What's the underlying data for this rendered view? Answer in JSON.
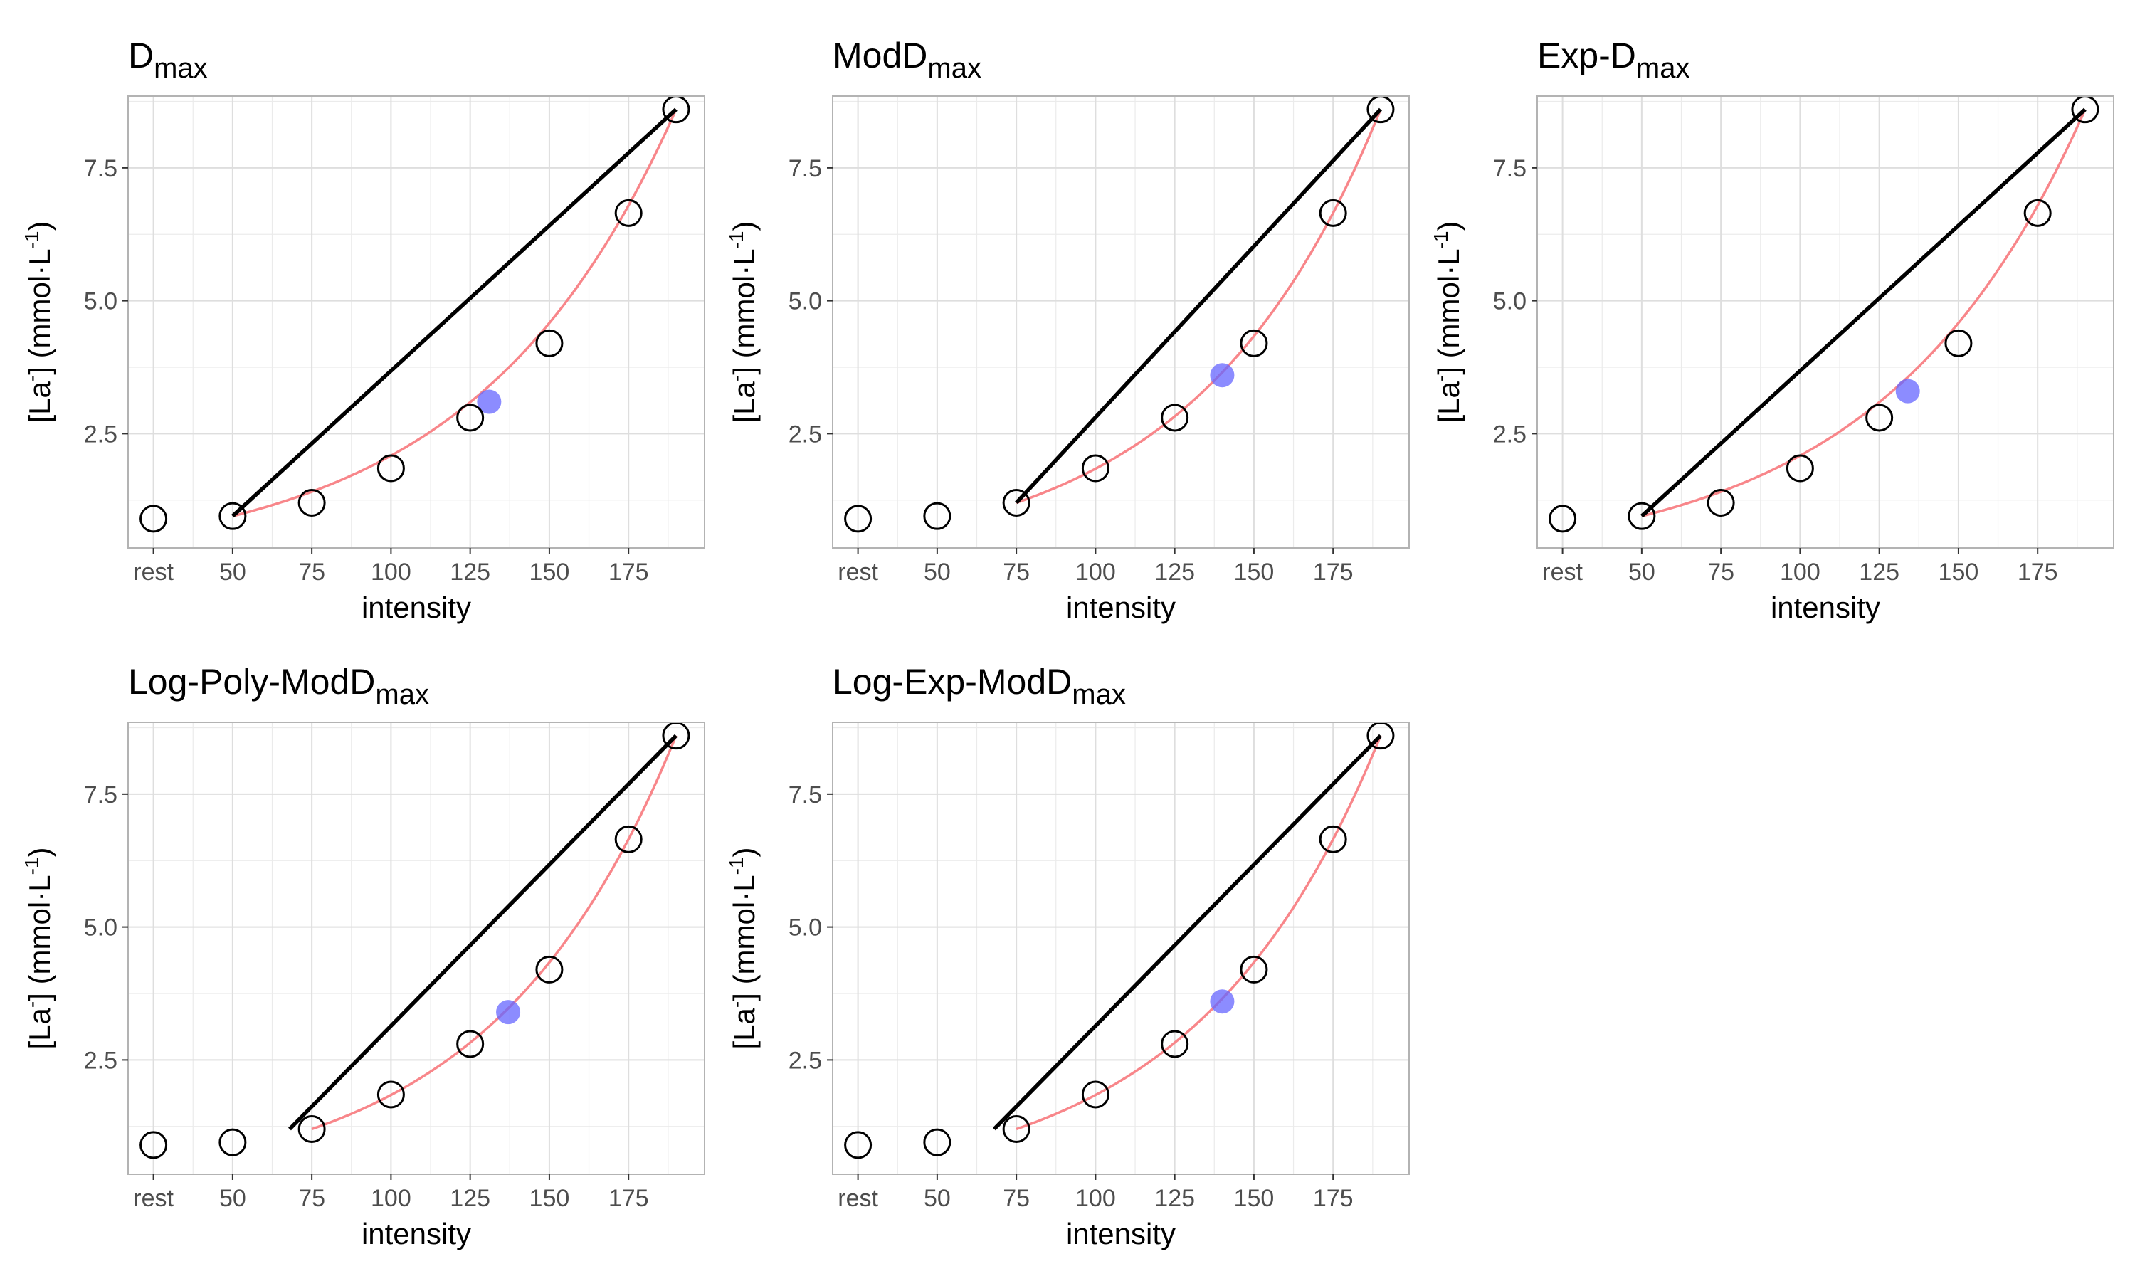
{
  "chart_data": [
    {
      "type": "scatter",
      "title_main": "D",
      "title_sub": "max",
      "xlabel": "intensity",
      "ylabel": {
        "prefix": "[La",
        "sup1": "-",
        "middle": "] (mmol·L",
        "sup2": "-1",
        "suffix": ")"
      },
      "x_tick_labels": [
        "rest",
        "50",
        "75",
        "100",
        "125",
        "150",
        "175"
      ],
      "x_tick_values": [
        25,
        50,
        75,
        100,
        125,
        150,
        175
      ],
      "y_tick_labels": [
        "2.5",
        "5.0",
        "7.5"
      ],
      "y_tick_values": [
        2.5,
        5.0,
        7.5
      ],
      "xlim": [
        17,
        199
      ],
      "ylim": [
        0.35,
        8.85
      ],
      "grid": true,
      "points": {
        "x": [
          25,
          50,
          75,
          100,
          125,
          150,
          175,
          190
        ],
        "y": [
          0.9,
          0.95,
          1.2,
          1.85,
          2.8,
          4.2,
          6.65,
          8.6
        ]
      },
      "curve": {
        "start": [
          50,
          0.95
        ],
        "end": [
          190,
          8.6
        ]
      },
      "line": {
        "start": [
          50,
          0.95
        ],
        "end": [
          190,
          8.6
        ]
      },
      "threshold": {
        "x": 131,
        "y": 3.1
      },
      "colors": {
        "curve": "#f8868a",
        "line": "#000000",
        "threshold": "#6666ff",
        "grid": "#ebebeb",
        "panel_border": "#b3b3b3"
      }
    },
    {
      "type": "scatter",
      "title_main": "ModD",
      "title_sub": "max",
      "xlabel": "intensity",
      "ylabel": {
        "prefix": "[La",
        "sup1": "-",
        "middle": "] (mmol·L",
        "sup2": "-1",
        "suffix": ")"
      },
      "x_tick_labels": [
        "rest",
        "50",
        "75",
        "100",
        "125",
        "150",
        "175"
      ],
      "x_tick_values": [
        25,
        50,
        75,
        100,
        125,
        150,
        175
      ],
      "y_tick_labels": [
        "2.5",
        "5.0",
        "7.5"
      ],
      "y_tick_values": [
        2.5,
        5.0,
        7.5
      ],
      "xlim": [
        17,
        199
      ],
      "ylim": [
        0.35,
        8.85
      ],
      "grid": true,
      "points": {
        "x": [
          25,
          50,
          75,
          100,
          125,
          150,
          175,
          190
        ],
        "y": [
          0.9,
          0.95,
          1.2,
          1.85,
          2.8,
          4.2,
          6.65,
          8.6
        ]
      },
      "curve": {
        "start": [
          75,
          1.2
        ],
        "end": [
          190,
          8.6
        ]
      },
      "line": {
        "start": [
          75,
          1.2
        ],
        "end": [
          190,
          8.6
        ]
      },
      "threshold": {
        "x": 140,
        "y": 3.6
      },
      "colors": {
        "curve": "#f8868a",
        "line": "#000000",
        "threshold": "#6666ff",
        "grid": "#ebebeb",
        "panel_border": "#b3b3b3"
      }
    },
    {
      "type": "scatter",
      "title_main": "Exp-D",
      "title_sub": "max",
      "xlabel": "intensity",
      "ylabel": {
        "prefix": "[La",
        "sup1": "-",
        "middle": "] (mmol·L",
        "sup2": "-1",
        "suffix": ")"
      },
      "x_tick_labels": [
        "rest",
        "50",
        "75",
        "100",
        "125",
        "150",
        "175"
      ],
      "x_tick_values": [
        25,
        50,
        75,
        100,
        125,
        150,
        175
      ],
      "y_tick_labels": [
        "2.5",
        "5.0",
        "7.5"
      ],
      "y_tick_values": [
        2.5,
        5.0,
        7.5
      ],
      "xlim": [
        17,
        199
      ],
      "ylim": [
        0.35,
        8.85
      ],
      "grid": true,
      "points": {
        "x": [
          25,
          50,
          75,
          100,
          125,
          150,
          175,
          190
        ],
        "y": [
          0.9,
          0.95,
          1.2,
          1.85,
          2.8,
          4.2,
          6.65,
          8.6
        ]
      },
      "curve": {
        "start": [
          50,
          0.95
        ],
        "end": [
          190,
          8.6
        ]
      },
      "line": {
        "start": [
          50,
          0.95
        ],
        "end": [
          190,
          8.6
        ]
      },
      "threshold": {
        "x": 134,
        "y": 3.3
      },
      "colors": {
        "curve": "#f8868a",
        "line": "#000000",
        "threshold": "#6666ff",
        "grid": "#ebebeb",
        "panel_border": "#b3b3b3"
      }
    },
    {
      "type": "scatter",
      "title_main": "Log-Poly-ModD",
      "title_sub": "max",
      "xlabel": "intensity",
      "ylabel": {
        "prefix": "[La",
        "sup1": "-",
        "middle": "] (mmol·L",
        "sup2": "-1",
        "suffix": ")"
      },
      "x_tick_labels": [
        "rest",
        "50",
        "75",
        "100",
        "125",
        "150",
        "175"
      ],
      "x_tick_values": [
        25,
        50,
        75,
        100,
        125,
        150,
        175
      ],
      "y_tick_labels": [
        "2.5",
        "5.0",
        "7.5"
      ],
      "y_tick_values": [
        2.5,
        5.0,
        7.5
      ],
      "xlim": [
        17,
        199
      ],
      "ylim": [
        0.35,
        8.85
      ],
      "grid": true,
      "points": {
        "x": [
          25,
          50,
          75,
          100,
          125,
          150,
          175,
          190
        ],
        "y": [
          0.9,
          0.95,
          1.2,
          1.85,
          2.8,
          4.2,
          6.65,
          8.6
        ]
      },
      "curve": {
        "start": [
          75,
          1.2
        ],
        "end": [
          190,
          8.6
        ]
      },
      "line": {
        "start": [
          68,
          1.2
        ],
        "end": [
          190,
          8.6
        ]
      },
      "threshold": {
        "x": 137,
        "y": 3.4
      },
      "colors": {
        "curve": "#f8868a",
        "line": "#000000",
        "threshold": "#6666ff",
        "grid": "#ebebeb",
        "panel_border": "#b3b3b3"
      }
    },
    {
      "type": "scatter",
      "title_main": "Log-Exp-ModD",
      "title_sub": "max",
      "xlabel": "intensity",
      "ylabel": {
        "prefix": "[La",
        "sup1": "-",
        "middle": "] (mmol·L",
        "sup2": "-1",
        "suffix": ")"
      },
      "x_tick_labels": [
        "rest",
        "50",
        "75",
        "100",
        "125",
        "150",
        "175"
      ],
      "x_tick_values": [
        25,
        50,
        75,
        100,
        125,
        150,
        175
      ],
      "y_tick_labels": [
        "2.5",
        "5.0",
        "7.5"
      ],
      "y_tick_values": [
        2.5,
        5.0,
        7.5
      ],
      "xlim": [
        17,
        199
      ],
      "ylim": [
        0.35,
        8.85
      ],
      "grid": true,
      "points": {
        "x": [
          25,
          50,
          75,
          100,
          125,
          150,
          175,
          190
        ],
        "y": [
          0.9,
          0.95,
          1.2,
          1.85,
          2.8,
          4.2,
          6.65,
          8.6
        ]
      },
      "curve": {
        "start": [
          75,
          1.2
        ],
        "end": [
          190,
          8.6
        ]
      },
      "line": {
        "start": [
          68,
          1.2
        ],
        "end": [
          190,
          8.6
        ]
      },
      "threshold": {
        "x": 140,
        "y": 3.6
      },
      "colors": {
        "curve": "#f8868a",
        "line": "#000000",
        "threshold": "#6666ff",
        "grid": "#ebebeb",
        "panel_border": "#b3b3b3"
      }
    }
  ]
}
